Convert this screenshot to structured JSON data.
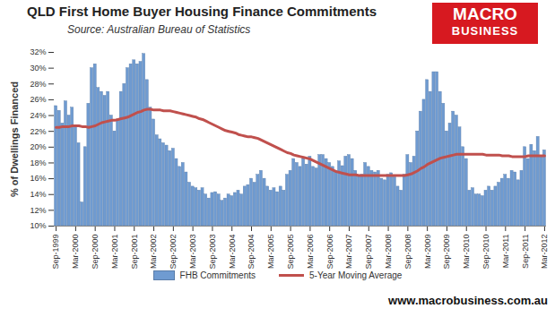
{
  "chart_data": {
    "type": "bar",
    "title": "QLD First Home Buyer Housing Finance Commitments",
    "subtitle": "Source: Australian Bureau of Statistics",
    "y_label": "% of Dwellings Financed",
    "annotations": [
      "MACRO",
      "BUSINESS",
      "www.macrobusiness.com.au"
    ],
    "categories": [
      "Sep-1999",
      null,
      null,
      null,
      null,
      null,
      "Mar-2000",
      null,
      null,
      null,
      null,
      null,
      "Sep-2000",
      null,
      null,
      null,
      null,
      null,
      "Mar-2001",
      null,
      null,
      null,
      null,
      null,
      "Sep-2001",
      null,
      null,
      null,
      null,
      null,
      "Mar-2002",
      null,
      null,
      null,
      null,
      null,
      "Sep-2002",
      null,
      null,
      null,
      null,
      null,
      "Mar-2003",
      null,
      null,
      null,
      null,
      null,
      "Sep-2003",
      null,
      null,
      null,
      null,
      null,
      "Mar-2004",
      null,
      null,
      null,
      null,
      null,
      "Sep-2004",
      null,
      null,
      null,
      null,
      null,
      "Mar-2005",
      null,
      null,
      null,
      null,
      null,
      "Sep-2005",
      null,
      null,
      null,
      null,
      null,
      "Mar-2006",
      null,
      null,
      null,
      null,
      null,
      "Sep-2006",
      null,
      null,
      null,
      null,
      null,
      "Mar-2007",
      null,
      null,
      null,
      null,
      null,
      "Sep-2007",
      null,
      null,
      null,
      null,
      null,
      "Mar-2008",
      null,
      null,
      null,
      null,
      null,
      "Sep-2008",
      null,
      null,
      null,
      null,
      null,
      "Mar-2009",
      null,
      null,
      null,
      null,
      null,
      "Sep-2009",
      null,
      null,
      null,
      null,
      null,
      "Mar-2010",
      null,
      null,
      null,
      null,
      null,
      "Sep-2010",
      null,
      null,
      null,
      null,
      null,
      "Mar-2011",
      null,
      null,
      null,
      null,
      null,
      "Sep-2011",
      null,
      null,
      null,
      null,
      null,
      "Mar-2012"
    ],
    "series": [
      {
        "name": "FHB Commitments",
        "type": "bar",
        "color": "#6f9bd1",
        "values": [
          25.2,
          24.6,
          23.0,
          25.8,
          24.0,
          25.0,
          22.5,
          20.5,
          13.0,
          20.0,
          25.5,
          30.0,
          30.5,
          27.5,
          27.0,
          26.5,
          27.0,
          24.0,
          22.0,
          23.5,
          27.0,
          28.0,
          30.0,
          30.5,
          31.0,
          30.5,
          30.8,
          31.8,
          28.5,
          25.0,
          23.5,
          21.5,
          21.0,
          20.5,
          20.2,
          19.5,
          19.8,
          18.5,
          17.5,
          18.0,
          16.8,
          15.5,
          15.0,
          14.8,
          14.5,
          14.8,
          14.0,
          13.5,
          14.2,
          14.3,
          14.0,
          13.2,
          13.5,
          14.0,
          13.8,
          14.2,
          14.5,
          14.0,
          15.0,
          15.2,
          16.0,
          15.5,
          16.5,
          17.0,
          16.0,
          15.0,
          14.5,
          14.8,
          14.3,
          15.0,
          14.5,
          16.5,
          17.0,
          18.5,
          18.0,
          17.5,
          18.5,
          17.8,
          18.8,
          17.5,
          17.3,
          19.0,
          19.0,
          18.5,
          18.0,
          17.5,
          17.0,
          18.2,
          17.6,
          18.8,
          19.0,
          18.5,
          17.0,
          16.3,
          16.5,
          18.0,
          17.5,
          17.0,
          16.8,
          17.0,
          16.0,
          15.8,
          16.5,
          16.7,
          16.2,
          15.0,
          14.5,
          16.5,
          19.0,
          18.0,
          18.8,
          22.0,
          24.5,
          26.0,
          28.5,
          27.0,
          29.5,
          29.5,
          27.0,
          25.5,
          22.0,
          23.0,
          24.5,
          24.0,
          22.5,
          20.0,
          18.5,
          14.5,
          14.8,
          14.0,
          14.0,
          13.8,
          14.5,
          15.0,
          14.5,
          15.0,
          15.5,
          16.0,
          16.5,
          16.0,
          17.0,
          16.8,
          15.8,
          17.0,
          20.0,
          18.5,
          20.3,
          19.5,
          21.3,
          18.8,
          19.6
        ]
      },
      {
        "name": "5-Year Moving Average",
        "type": "line",
        "color": "#c0504d",
        "values": [
          22.5,
          22.5,
          22.6,
          22.6,
          22.6,
          22.7,
          22.7,
          22.7,
          22.6,
          22.6,
          22.5,
          22.6,
          22.7,
          22.9,
          23.1,
          23.2,
          23.3,
          23.4,
          23.4,
          23.5,
          23.6,
          23.7,
          23.8,
          24.0,
          24.2,
          24.4,
          24.5,
          24.7,
          24.8,
          24.8,
          24.7,
          24.7,
          24.7,
          24.6,
          24.6,
          24.6,
          24.5,
          24.4,
          24.3,
          24.2,
          24.1,
          24.0,
          23.9,
          23.8,
          23.6,
          23.5,
          23.3,
          23.1,
          22.9,
          22.7,
          22.5,
          22.3,
          22.1,
          22.0,
          21.9,
          21.8,
          21.6,
          21.5,
          21.4,
          21.3,
          21.3,
          21.2,
          21.1,
          20.9,
          20.7,
          20.5,
          20.3,
          20.1,
          19.9,
          19.7,
          19.5,
          19.3,
          19.2,
          19.0,
          18.9,
          18.8,
          18.7,
          18.6,
          18.5,
          18.3,
          18.1,
          17.9,
          17.7,
          17.5,
          17.3,
          17.1,
          16.9,
          16.8,
          16.7,
          16.6,
          16.5,
          16.5,
          16.5,
          16.4,
          16.4,
          16.4,
          16.4,
          16.4,
          16.4,
          16.4,
          16.4,
          16.4,
          16.4,
          16.4,
          16.4,
          16.4,
          16.4,
          16.4,
          16.5,
          16.6,
          16.8,
          17.0,
          17.3,
          17.5,
          17.8,
          18.0,
          18.2,
          18.4,
          18.6,
          18.7,
          18.8,
          18.9,
          19.0,
          19.1,
          19.1,
          19.1,
          19.1,
          19.1,
          19.1,
          19.1,
          19.1,
          19.1,
          19.0,
          19.0,
          19.0,
          19.0,
          19.0,
          18.9,
          18.9,
          18.9,
          18.8,
          18.8,
          18.8,
          18.8,
          18.8,
          18.9,
          18.9,
          18.9,
          18.9,
          18.9,
          18.9
        ]
      }
    ],
    "ylim": [
      10,
      32
    ],
    "yticks": [
      {
        "value": 10,
        "label": "10%"
      },
      {
        "value": 12,
        "label": "12%"
      },
      {
        "value": 14,
        "label": "14%"
      },
      {
        "value": 16,
        "label": "16%"
      },
      {
        "value": 18,
        "label": "18%"
      },
      {
        "value": 20,
        "label": "20%"
      },
      {
        "value": 22,
        "label": "22%"
      },
      {
        "value": 24,
        "label": "24%"
      },
      {
        "value": 26,
        "label": "26%"
      },
      {
        "value": 28,
        "label": "28%"
      },
      {
        "value": 30,
        "label": "30%"
      },
      {
        "value": 32,
        "label": "32%"
      }
    ],
    "grid": false,
    "legend": "bottom"
  }
}
